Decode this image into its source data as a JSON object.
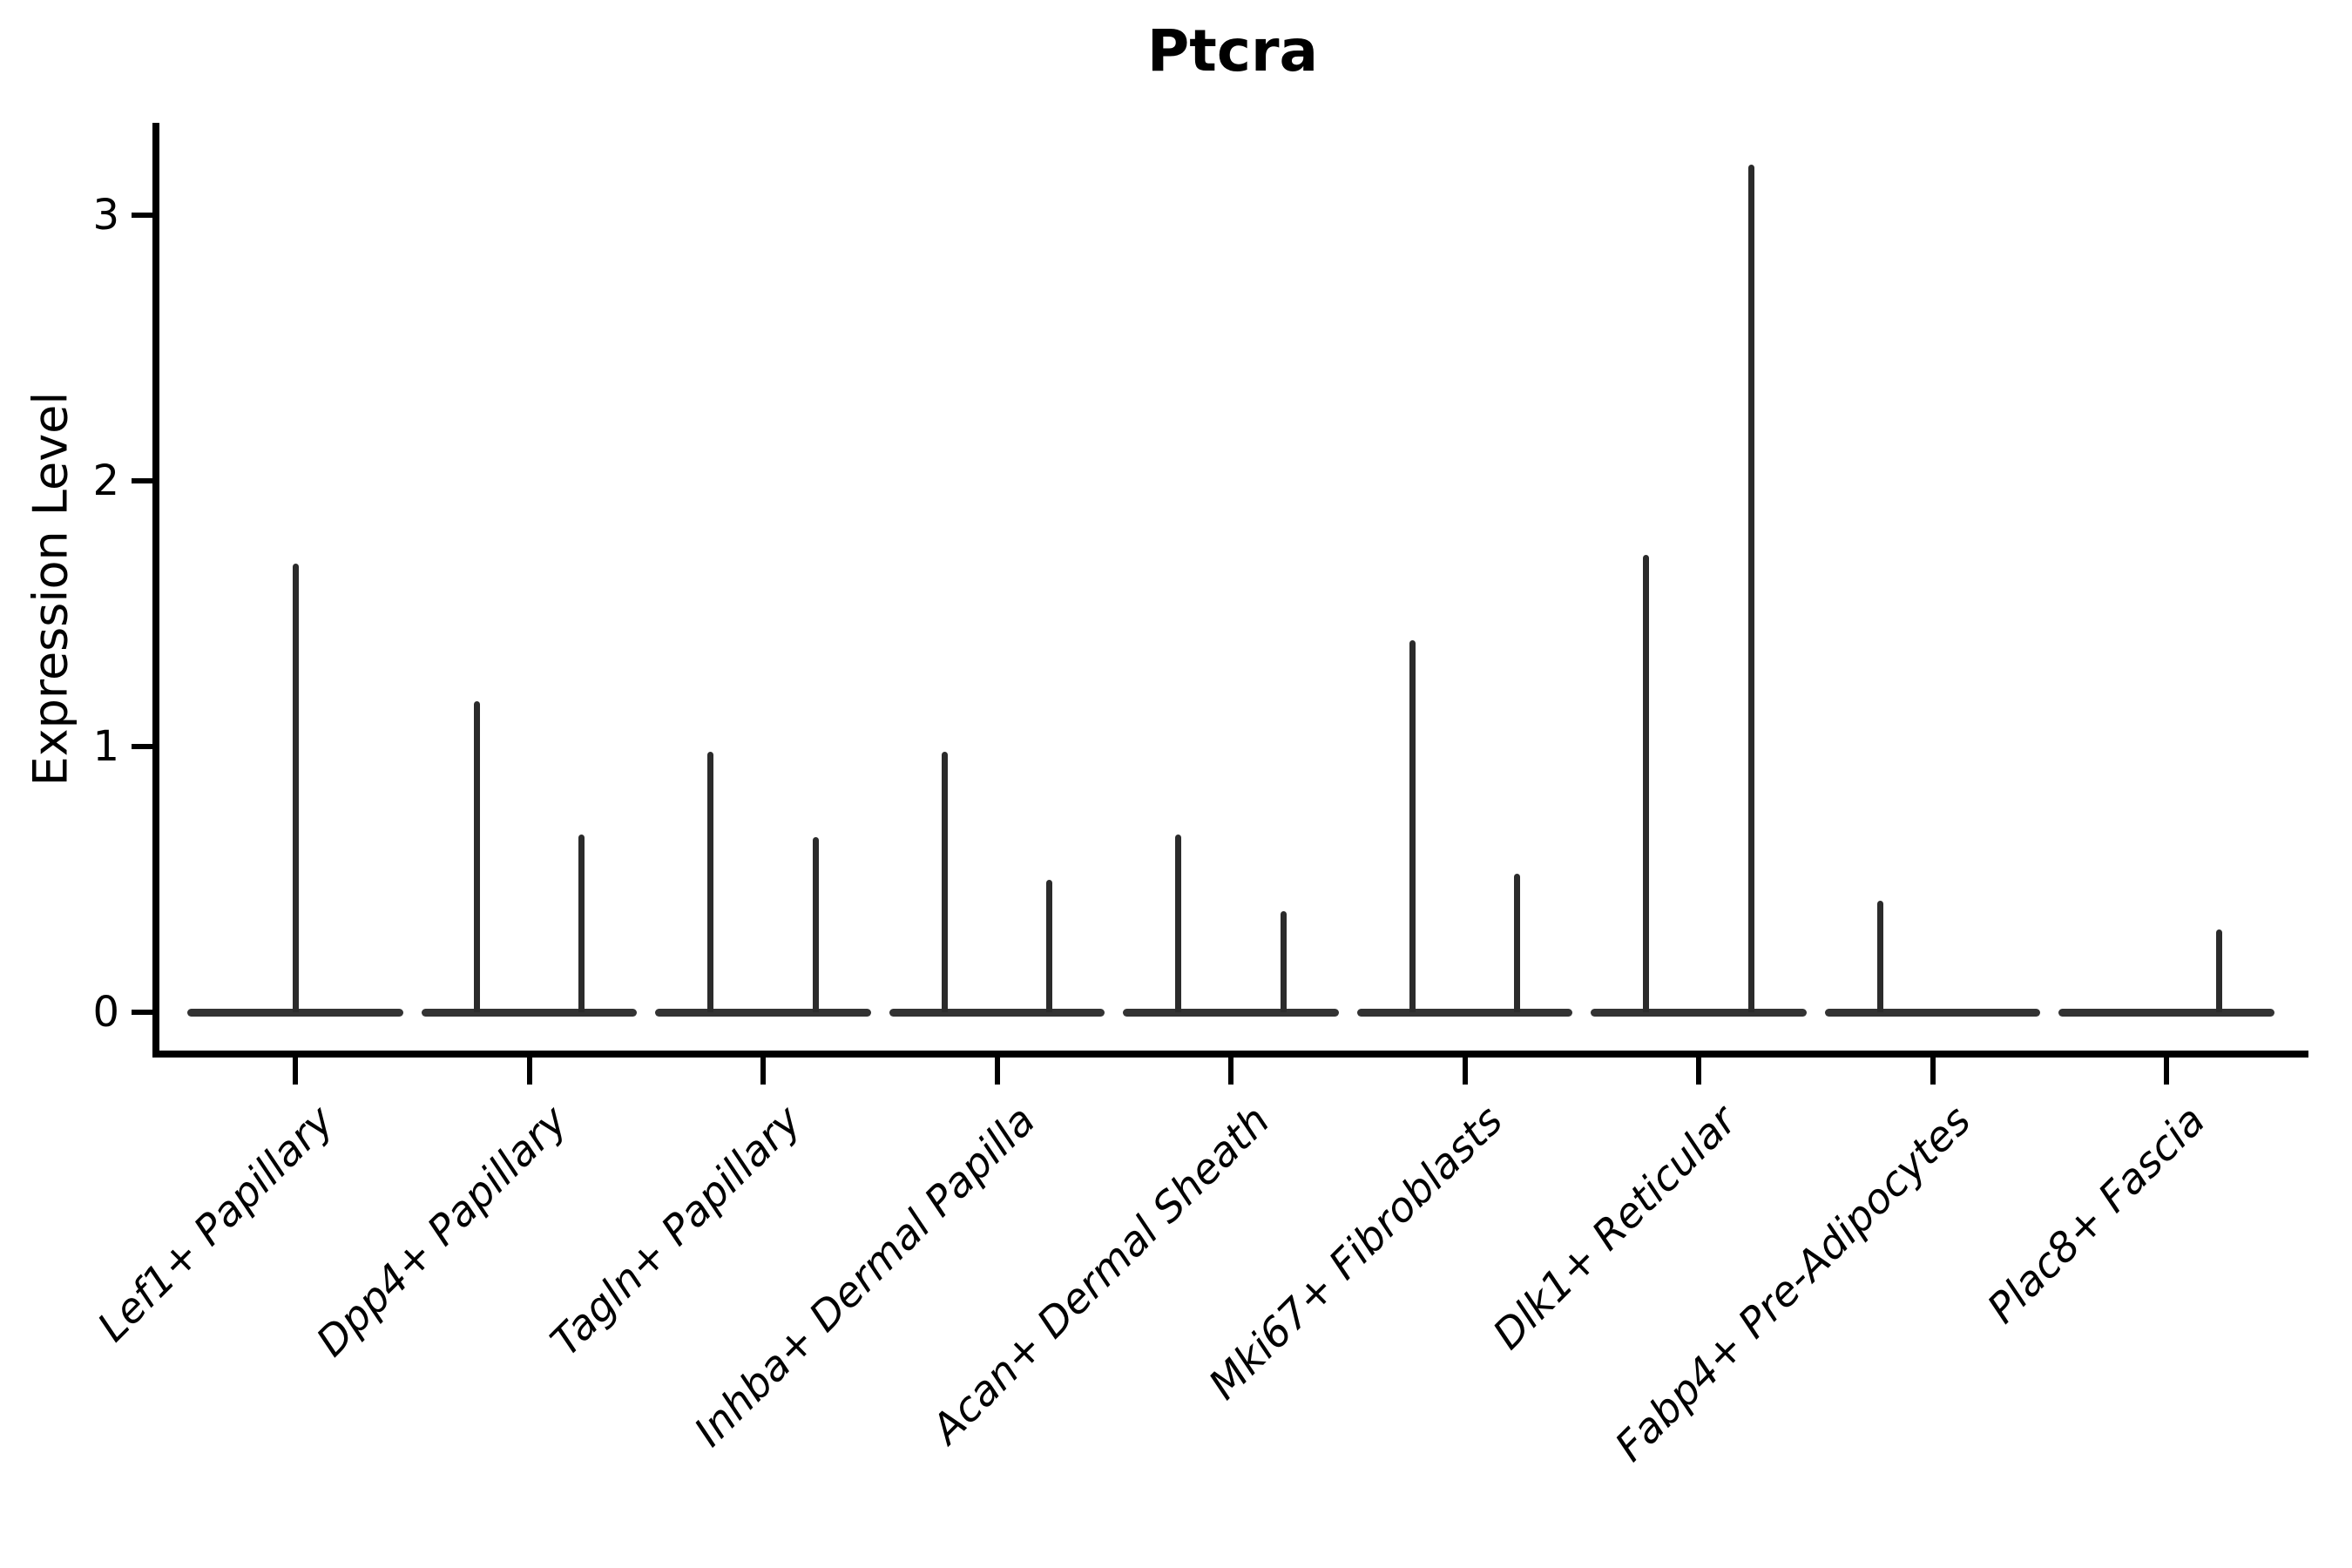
{
  "chart_data": {
    "type": "violin",
    "title": "Ptcra",
    "ylabel": "Expression Level",
    "xlabel": "",
    "ylim": [
      0,
      3.35
    ],
    "yticks": [
      0,
      1,
      2,
      3
    ],
    "ytick_labels": [
      "0",
      "1",
      "2",
      "3"
    ],
    "grid": false,
    "legend": null,
    "categories": [
      "Lef1+ Papillary",
      "Dpp4+ Papillary",
      "Tagln+ Papillary",
      "Inhba+ Dermal Papilla",
      "Acan+ Dermal Sheath",
      "Mki67+ Fibroblasts",
      "Dlk1+ Reticular",
      "Fabp4+ Pre-Adipocytes",
      "Plac8+ Fascia"
    ],
    "violins": [
      {
        "category": "Lef1+ Papillary",
        "spikes": [
          {
            "offset": 0.0,
            "max": 1.69
          }
        ]
      },
      {
        "category": "Dpp4+ Papillary",
        "spikes": [
          {
            "offset": -0.225,
            "max": 1.17
          },
          {
            "offset": 0.225,
            "max": 0.67
          }
        ]
      },
      {
        "category": "Tagln+ Papillary",
        "spikes": [
          {
            "offset": -0.225,
            "max": 0.98
          },
          {
            "offset": 0.225,
            "max": 0.66
          }
        ]
      },
      {
        "category": "Inhba+ Dermal Papilla",
        "spikes": [
          {
            "offset": -0.225,
            "max": 0.98
          },
          {
            "offset": 0.225,
            "max": 0.5
          }
        ]
      },
      {
        "category": "Acan+ Dermal Sheath",
        "spikes": [
          {
            "offset": -0.225,
            "max": 0.67
          },
          {
            "offset": 0.225,
            "max": 0.38
          }
        ]
      },
      {
        "category": "Mki67+ Fibroblasts",
        "spikes": [
          {
            "offset": -0.225,
            "max": 1.4
          },
          {
            "offset": 0.225,
            "max": 0.52
          }
        ]
      },
      {
        "category": "Dlk1+ Reticular",
        "spikes": [
          {
            "offset": -0.225,
            "max": 1.72
          },
          {
            "offset": 0.225,
            "max": 3.19
          }
        ]
      },
      {
        "category": "Fabp4+ Pre-Adipocytes",
        "spikes": [
          {
            "offset": -0.225,
            "max": 0.42
          }
        ]
      },
      {
        "category": "Plac8+ Fascia",
        "spikes": [
          {
            "offset": 0.225,
            "max": 0.31
          }
        ]
      }
    ],
    "violin_halfwidth": 0.46,
    "baseline_value": 0,
    "colors": {
      "line": "#2b2b2b",
      "baseline": "#333333",
      "axis": "#000000",
      "background": "#ffffff"
    }
  }
}
